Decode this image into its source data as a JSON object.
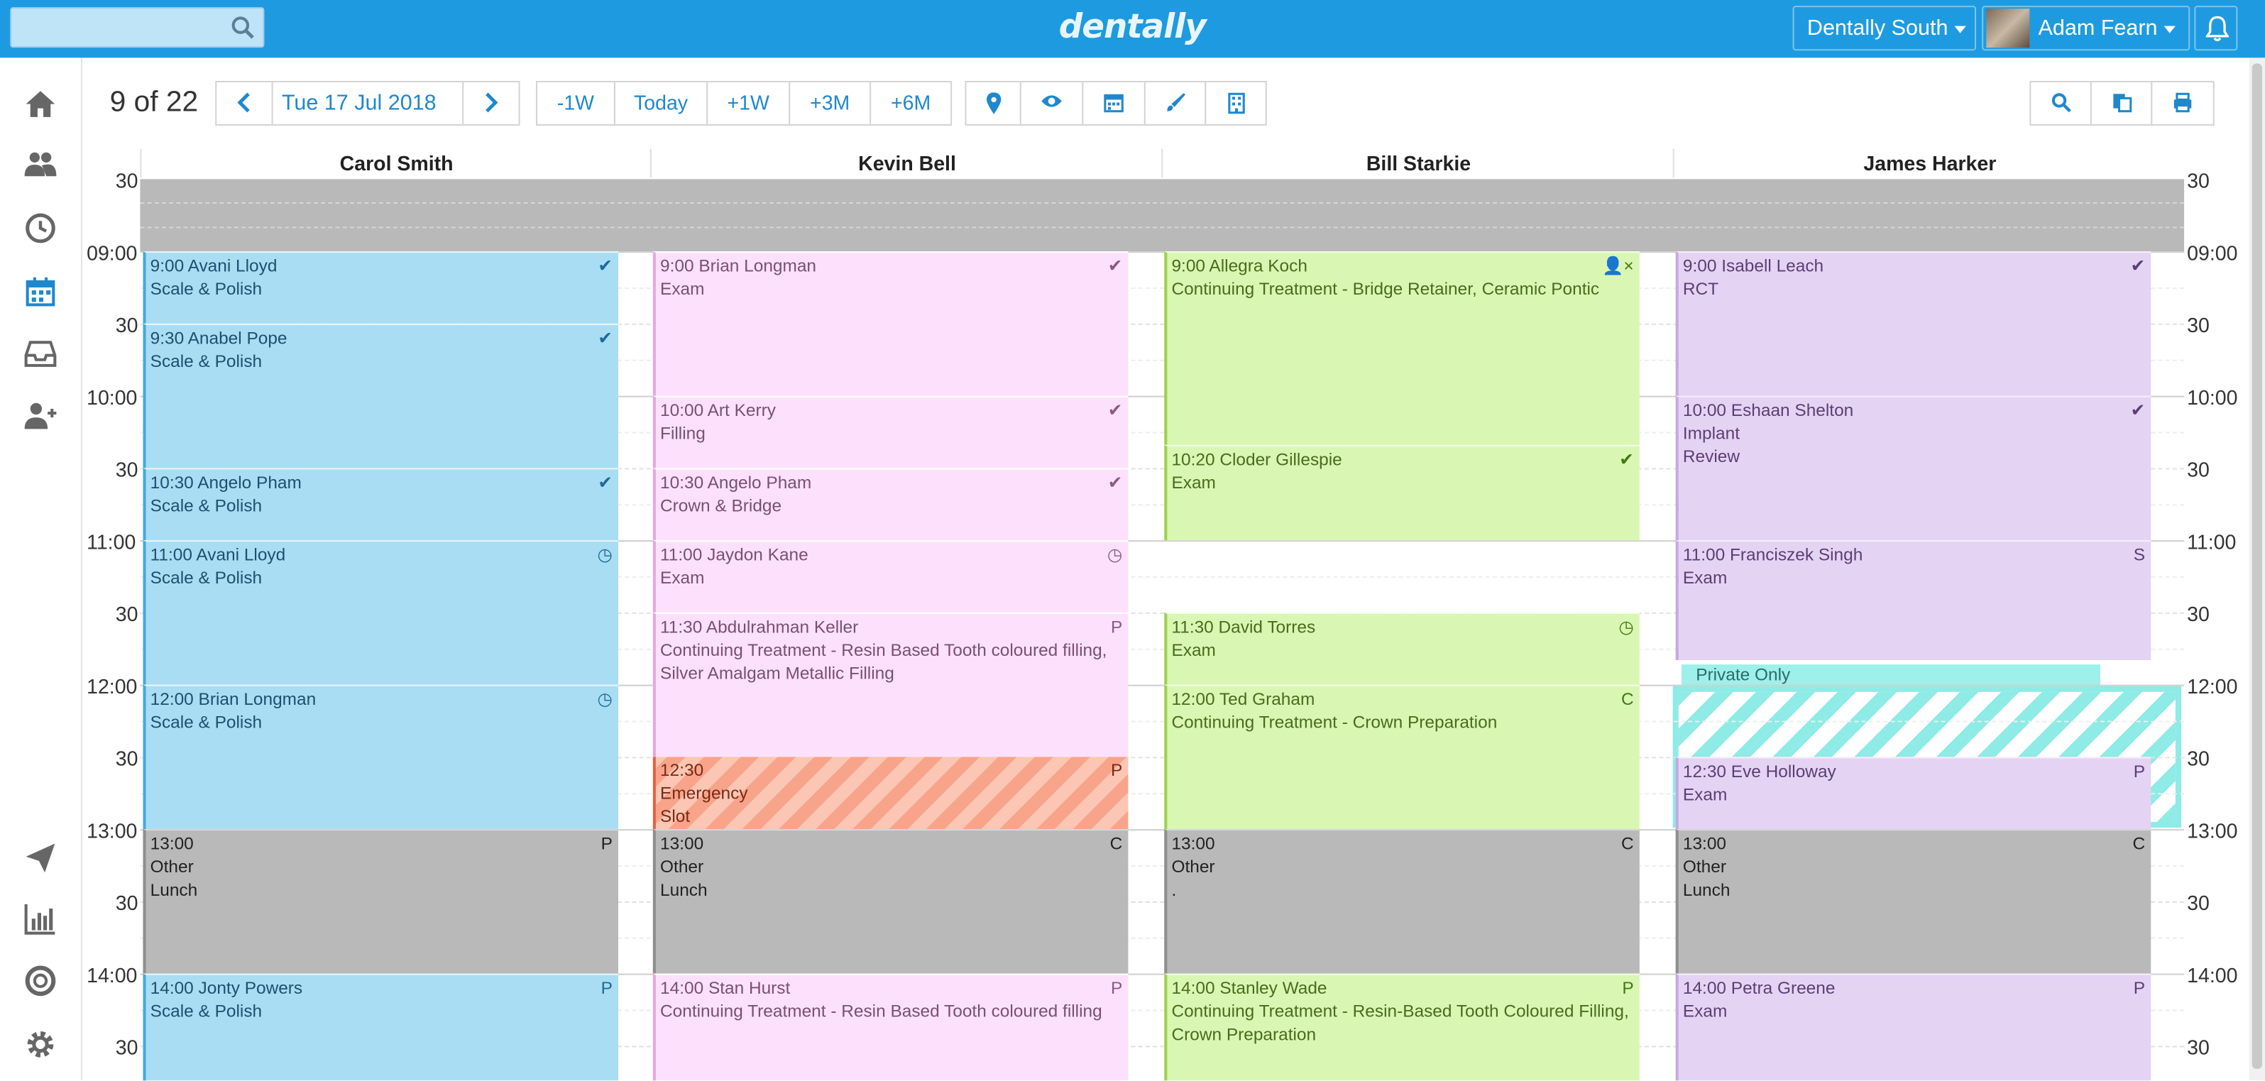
{
  "topbar": {
    "search_placeholder": "",
    "logo": "dentally",
    "practice": "Dentally South",
    "user": "Adam Fearn"
  },
  "toolbar": {
    "counter": "9 of 22",
    "date": "Tue 17 Jul 2018",
    "jumps": [
      "-1W",
      "Today",
      "+1W",
      "+3M",
      "+6M"
    ]
  },
  "calendar": {
    "columns": [
      "Carol Smith",
      "Kevin Bell",
      "Bill Starkie",
      "James Harker"
    ],
    "time_labels_left": [
      "30",
      "09:00",
      "30",
      "10:00",
      "30",
      "11:00",
      "30",
      "12:00",
      "30",
      "13:00",
      "30",
      "14:00",
      "30"
    ],
    "time_labels_right": [
      "30",
      "09:00",
      "30",
      "10:00",
      "30",
      "11:00",
      "30",
      "12:00",
      "30",
      "13:00",
      "30",
      "14:00",
      "30"
    ],
    "private_label": "Private Only",
    "appointments": [
      {
        "col": 0,
        "lines": [
          "9:00 Avani Lloyd",
          "Scale & Polish"
        ],
        "status": "✔",
        "color": "blue"
      },
      {
        "col": 0,
        "lines": [
          "9:30 Anabel Pope",
          "Scale & Polish"
        ],
        "status": "✔",
        "color": "blue"
      },
      {
        "col": 0,
        "lines": [
          "10:30 Angelo Pham",
          "Scale & Polish"
        ],
        "status": "✔",
        "color": "blue"
      },
      {
        "col": 0,
        "lines": [
          "11:00 Avani Lloyd",
          "Scale & Polish"
        ],
        "status": "◷",
        "color": "blue"
      },
      {
        "col": 0,
        "lines": [
          "12:00 Brian Longman",
          "Scale & Polish"
        ],
        "status": "◷",
        "color": "blue"
      },
      {
        "col": 0,
        "lines": [
          "13:00",
          "Other",
          "Lunch"
        ],
        "status": "P",
        "color": "grey"
      },
      {
        "col": 0,
        "lines": [
          "14:00 Jonty Powers",
          "Scale & Polish"
        ],
        "status": "P",
        "color": "blue"
      },
      {
        "col": 1,
        "lines": [
          "9:00 Brian Longman",
          "Exam"
        ],
        "status": "✔",
        "color": "pink"
      },
      {
        "col": 1,
        "lines": [
          "10:00 Art Kerry",
          "Filling"
        ],
        "status": "✔",
        "color": "pink"
      },
      {
        "col": 1,
        "lines": [
          "10:30 Angelo Pham",
          "Crown & Bridge"
        ],
        "status": "✔",
        "color": "pink"
      },
      {
        "col": 1,
        "lines": [
          "11:00 Jaydon Kane",
          "Exam"
        ],
        "status": "◷",
        "color": "pink"
      },
      {
        "col": 1,
        "lines": [
          "11:30 Abdulrahman Keller",
          "Continuing Treatment - Resin Based Tooth coloured filling, Silver Amalgam Metallic Filling"
        ],
        "status": "P",
        "color": "pink"
      },
      {
        "col": 1,
        "lines": [
          "12:30",
          "Emergency",
          "Slot"
        ],
        "status": "P",
        "color": "emerg"
      },
      {
        "col": 1,
        "lines": [
          "13:00",
          "Other",
          "Lunch"
        ],
        "status": "C",
        "color": "grey"
      },
      {
        "col": 1,
        "lines": [
          "14:00 Stan Hurst",
          "Continuing Treatment - Resin Based Tooth coloured filling"
        ],
        "status": "P",
        "color": "pink"
      },
      {
        "col": 2,
        "lines": [
          "9:00 Allegra Koch",
          "Continuing Treatment - Bridge Retainer, Ceramic Pontic"
        ],
        "status": "👤×",
        "color": "green"
      },
      {
        "col": 2,
        "lines": [
          "10:20 Cloder Gillespie",
          "Exam"
        ],
        "status": "✔",
        "color": "green"
      },
      {
        "col": 2,
        "lines": [
          "11:30 David Torres",
          "Exam"
        ],
        "status": "◷",
        "color": "green"
      },
      {
        "col": 2,
        "lines": [
          "12:00 Ted Graham",
          "Continuing Treatment - Crown Preparation"
        ],
        "status": "C",
        "color": "green"
      },
      {
        "col": 2,
        "lines": [
          "13:00",
          "Other",
          "."
        ],
        "status": "C",
        "color": "grey"
      },
      {
        "col": 2,
        "lines": [
          "14:00 Stanley Wade",
          "Continuing Treatment - Resin-Based Tooth Coloured Filling, Crown Preparation"
        ],
        "status": "P",
        "color": "green"
      },
      {
        "col": 3,
        "lines": [
          "9:00 Isabell Leach",
          "RCT"
        ],
        "status": "✔",
        "color": "purple"
      },
      {
        "col": 3,
        "lines": [
          "10:00 Eshaan Shelton",
          "Implant",
          "Review"
        ],
        "status": "✔",
        "color": "purple"
      },
      {
        "col": 3,
        "lines": [
          "11:00 Franciszek Singh",
          "Exam"
        ],
        "status": "S",
        "color": "purple"
      },
      {
        "col": 3,
        "lines": [
          "12:30 Eve Holloway",
          "Exam"
        ],
        "status": "P",
        "color": "purple"
      },
      {
        "col": 3,
        "lines": [
          "13:00",
          "Other",
          "Lunch"
        ],
        "status": "C",
        "color": "grey"
      },
      {
        "col": 3,
        "lines": [
          "14:00 Petra Greene",
          "Exam"
        ],
        "status": "P",
        "color": "purple"
      }
    ]
  },
  "colors": {
    "topbar": "#1e9be0",
    "blue": "#a9ddf3",
    "pink": "#fde1fc",
    "green": "#d9f7b3",
    "purple": "#e5d3f4",
    "grey": "#b9b9b9",
    "private": "#8eebe5"
  }
}
